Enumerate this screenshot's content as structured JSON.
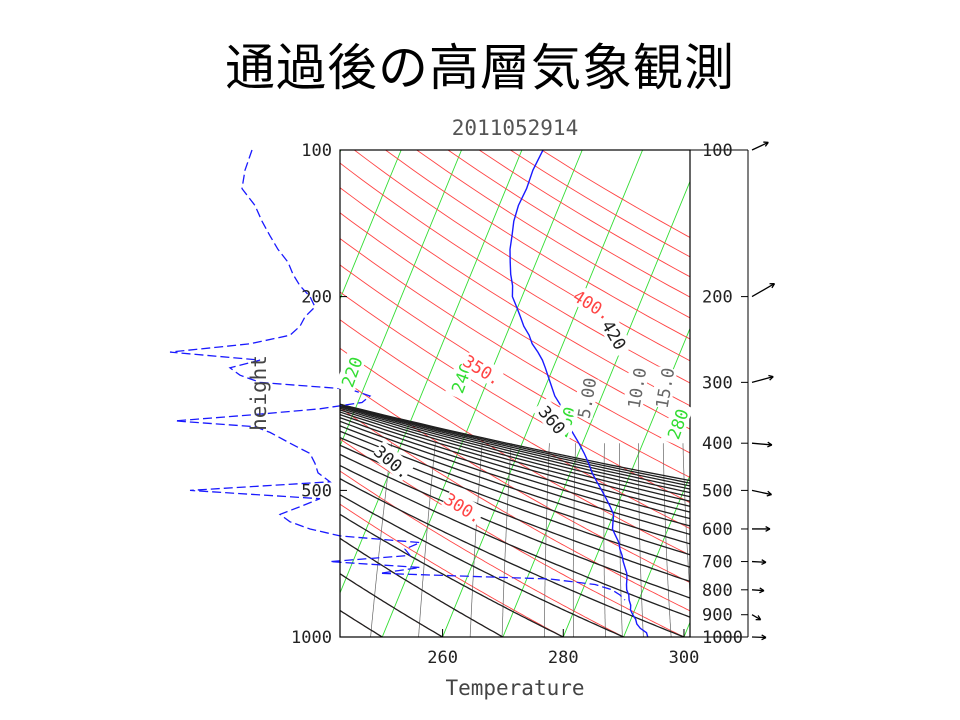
{
  "slide": {
    "title": "通過後の高層気象観測"
  },
  "chart_data": {
    "type": "line",
    "title": "2011052914",
    "xlabel": "Temperature",
    "ylabel": "height",
    "xlim": [
      243,
      301
    ],
    "ylim_pressure": [
      1000,
      100
    ],
    "x_ticks": [
      260,
      280,
      300
    ],
    "y_ticks": [
      100,
      200,
      500,
      1000
    ],
    "right_ticks": [
      100,
      200,
      300,
      400,
      500,
      600,
      700,
      800,
      900,
      1000
    ],
    "x_tick_labels": [
      "260",
      "280",
      "300"
    ],
    "y_tick_labels": [
      "100",
      "200",
      "500",
      "1000"
    ],
    "right_tick_labels": [
      "100",
      "200",
      "300",
      "400",
      "500",
      "600",
      "700",
      "800",
      "900",
      "1000"
    ],
    "grid": true,
    "isotherm_labels": [
      "220",
      "240",
      "260",
      "280"
    ],
    "dry_adiabat_labels": [
      "300.",
      "350.",
      "400."
    ],
    "moist_adiabat_labels": [
      "300.",
      "360",
      "420"
    ],
    "mixing_ratio_labels": [
      "5.00",
      "10.0",
      "15.0"
    ],
    "colors": {
      "sounding": "#1a1aff",
      "isotherm": "#33dd33",
      "dry_adiabat": "#ff4444",
      "moist_adiabat": "#202020",
      "mixing_ratio": "#666666"
    },
    "series": [
      {
        "kind": "temperature_profile",
        "points": [
          {
            "p": 1000,
            "t": 294.0
          },
          {
            "p": 980,
            "t": 293.5
          },
          {
            "p": 960,
            "t": 292.2
          },
          {
            "p": 940,
            "t": 291.3
          },
          {
            "p": 920,
            "t": 290.8
          },
          {
            "p": 900,
            "t": 290.0
          },
          {
            "p": 880,
            "t": 289.3
          },
          {
            "p": 860,
            "t": 289.0
          },
          {
            "p": 840,
            "t": 288.4
          },
          {
            "p": 820,
            "t": 288.0
          },
          {
            "p": 800,
            "t": 287.3
          },
          {
            "p": 780,
            "t": 286.9
          },
          {
            "p": 760,
            "t": 286.6
          },
          {
            "p": 740,
            "t": 286.2
          },
          {
            "p": 720,
            "t": 285.5
          },
          {
            "p": 700,
            "t": 284.8
          },
          {
            "p": 680,
            "t": 284.2
          },
          {
            "p": 660,
            "t": 283.4
          },
          {
            "p": 640,
            "t": 282.8
          },
          {
            "p": 620,
            "t": 281.8
          },
          {
            "p": 600,
            "t": 280.8
          },
          {
            "p": 580,
            "t": 280.4
          },
          {
            "p": 560,
            "t": 280.0
          },
          {
            "p": 540,
            "t": 278.9
          },
          {
            "p": 520,
            "t": 277.7
          },
          {
            "p": 500,
            "t": 276.4
          },
          {
            "p": 480,
            "t": 275.0
          },
          {
            "p": 460,
            "t": 273.6
          },
          {
            "p": 440,
            "t": 272.4
          },
          {
            "p": 420,
            "t": 271.0
          },
          {
            "p": 400,
            "t": 269.4
          },
          {
            "p": 380,
            "t": 267.6
          },
          {
            "p": 360,
            "t": 266.0
          },
          {
            "p": 340,
            "t": 264.4
          },
          {
            "p": 320,
            "t": 262.2
          },
          {
            "p": 300,
            "t": 260.5
          },
          {
            "p": 280,
            "t": 258.7
          },
          {
            "p": 270,
            "t": 257.7
          },
          {
            "p": 260,
            "t": 256.4
          },
          {
            "p": 250,
            "t": 254.9
          },
          {
            "p": 240,
            "t": 253.8
          },
          {
            "p": 230,
            "t": 252.3
          },
          {
            "p": 220,
            "t": 251.1
          },
          {
            "p": 210,
            "t": 249.8
          },
          {
            "p": 200,
            "t": 248.4
          },
          {
            "p": 190,
            "t": 247.7
          },
          {
            "p": 180,
            "t": 246.6
          },
          {
            "p": 170,
            "t": 245.7
          },
          {
            "p": 160,
            "t": 244.8
          },
          {
            "p": 150,
            "t": 244.2
          },
          {
            "p": 140,
            "t": 243.5
          },
          {
            "p": 130,
            "t": 243.2
          },
          {
            "p": 120,
            "t": 243.4
          },
          {
            "p": 110,
            "t": 243.2
          },
          {
            "p": 100,
            "t": 243.5
          }
        ]
      },
      {
        "kind": "humidity_trace",
        "points": [
          {
            "p": 100,
            "v": 252
          },
          {
            "p": 110,
            "v": 245
          },
          {
            "p": 120,
            "v": 242
          },
          {
            "p": 130,
            "v": 255
          },
          {
            "p": 140,
            "v": 262
          },
          {
            "p": 150,
            "v": 270
          },
          {
            "p": 160,
            "v": 278
          },
          {
            "p": 170,
            "v": 288
          },
          {
            "p": 180,
            "v": 293
          },
          {
            "p": 190,
            "v": 300
          },
          {
            "p": 200,
            "v": 310
          },
          {
            "p": 210,
            "v": 315
          },
          {
            "p": 220,
            "v": 305
          },
          {
            "p": 230,
            "v": 300
          },
          {
            "p": 240,
            "v": 290
          },
          {
            "p": 250,
            "v": 250
          },
          {
            "p": 260,
            "v": 170
          },
          {
            "p": 270,
            "v": 260
          },
          {
            "p": 280,
            "v": 230
          },
          {
            "p": 290,
            "v": 240
          },
          {
            "p": 300,
            "v": 260
          },
          {
            "p": 310,
            "v": 350
          },
          {
            "p": 320,
            "v": 370
          },
          {
            "p": 330,
            "v": 362
          },
          {
            "p": 340,
            "v": 320
          },
          {
            "p": 350,
            "v": 250
          },
          {
            "p": 360,
            "v": 175
          },
          {
            "p": 370,
            "v": 255
          },
          {
            "p": 380,
            "v": 270
          },
          {
            "p": 400,
            "v": 290
          },
          {
            "p": 420,
            "v": 310
          },
          {
            "p": 440,
            "v": 315
          },
          {
            "p": 460,
            "v": 318
          },
          {
            "p": 480,
            "v": 330
          },
          {
            "p": 500,
            "v": 190
          },
          {
            "p": 520,
            "v": 320
          },
          {
            "p": 540,
            "v": 300
          },
          {
            "p": 560,
            "v": 280
          },
          {
            "p": 580,
            "v": 290
          },
          {
            "p": 600,
            "v": 310
          },
          {
            "p": 620,
            "v": 340
          },
          {
            "p": 640,
            "v": 420
          },
          {
            "p": 660,
            "v": 405
          },
          {
            "p": 680,
            "v": 410
          },
          {
            "p": 700,
            "v": 330
          },
          {
            "p": 720,
            "v": 420
          },
          {
            "p": 740,
            "v": 380
          },
          {
            "p": 760,
            "v": 550
          },
          {
            "p": 780,
            "v": 595
          },
          {
            "p": 800,
            "v": 612
          },
          {
            "p": 820,
            "v": 620
          },
          {
            "p": 840,
            "v": 625
          }
        ]
      }
    ],
    "wind_barbs": [
      {
        "p": 100,
        "angle": -25,
        "len": 18
      },
      {
        "p": 200,
        "angle": -30,
        "len": 26
      },
      {
        "p": 300,
        "angle": -15,
        "len": 22
      },
      {
        "p": 400,
        "angle": 5,
        "len": 20
      },
      {
        "p": 500,
        "angle": 12,
        "len": 20
      },
      {
        "p": 600,
        "angle": 0,
        "len": 18
      },
      {
        "p": 700,
        "angle": 3,
        "len": 14
      },
      {
        "p": 800,
        "angle": 4,
        "len": 12
      },
      {
        "p": 900,
        "angle": 30,
        "len": 10
      },
      {
        "p": 1000,
        "angle": 2,
        "len": 14
      }
    ]
  }
}
